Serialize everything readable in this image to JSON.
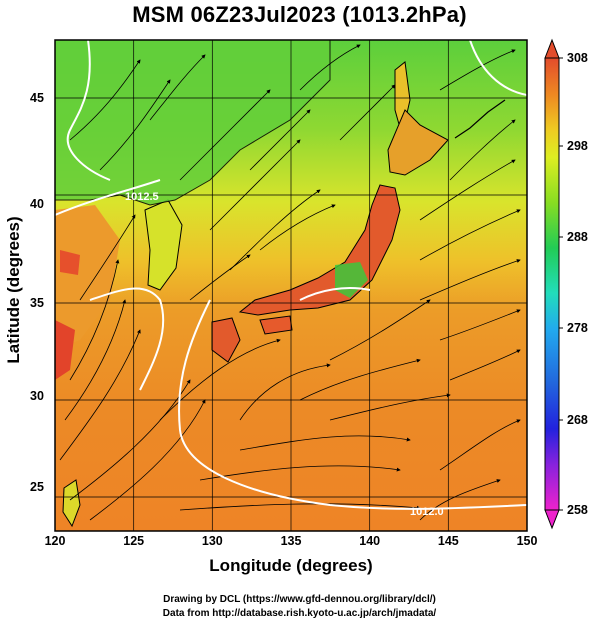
{
  "title": "MSM 06Z23Jul2023 (1013.2hPa)",
  "axes": {
    "xlabel": "Longitude (degrees)",
    "ylabel": "Latitude  (degrees)",
    "xticks": [
      "120",
      "125",
      "130",
      "135",
      "140",
      "145",
      "150"
    ],
    "yticks": [
      "25",
      "30",
      "35",
      "40",
      "45"
    ],
    "xrange": [
      120,
      150
    ],
    "yrange": [
      22.4,
      47.6
    ]
  },
  "colorbar": {
    "ticks": [
      "308",
      "298",
      "288",
      "278",
      "268",
      "258"
    ],
    "range": [
      258,
      308
    ],
    "colors": [
      "#ee22cc",
      "#8822dd",
      "#2222dd",
      "#22aaee",
      "#22ddbb",
      "#22cc55",
      "#88dd22",
      "#ddee22",
      "#eecc22",
      "#ee8822",
      "#e24c2c"
    ]
  },
  "contour_labels": [
    "1012.5",
    "1012.0",
    "1012.5",
    "1012.0"
  ],
  "credits": {
    "line1": "Drawing by DCL (https://www.gfd-dennou.org/library/dcl/)",
    "line2": "Data from http://database.rish.kyoto-u.ac.jp/arch/jmadata/"
  }
}
